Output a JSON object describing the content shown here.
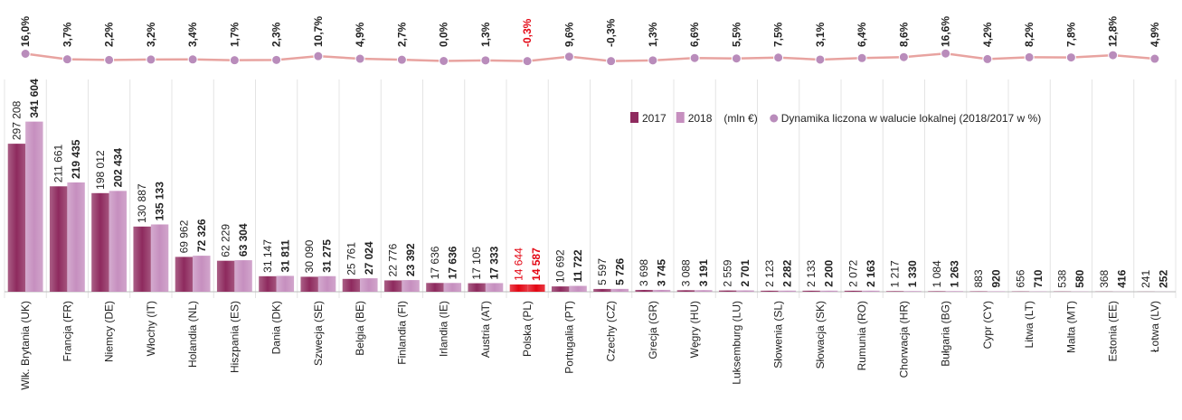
{
  "chart_data": {
    "type": "bar",
    "unit": "(mln €)",
    "categories": [
      "Wlk. Brytania (UK)",
      "Francja (FR)",
      "Niemcy (DE)",
      "Włochy (IT)",
      "Holandia (NL)",
      "Hiszpania (ES)",
      "Dania (DK)",
      "Szwecja (SE)",
      "Belgia (BE)",
      "Finlandia (FI)",
      "Irlandia (IE)",
      "Austria (AT)",
      "Polska (PL)",
      "Portugalia (PT)",
      "Czechy (CZ)",
      "Grecja (GR)",
      "Węgry (HU)",
      "Luksemburg (LU)",
      "Słowenia (SL)",
      "Słowacja (SK)",
      "Rumunia (RO)",
      "Chorwacja (HR)",
      "Bułgaria (BG)",
      "Cypr (CY)",
      "Litwa (LT)",
      "Malta (MT)",
      "Estonia (EE)",
      "Łotwa (LV)"
    ],
    "highlight": {
      "category": "Polska (PL)",
      "color": "#e30613"
    },
    "ylim": [
      0,
      350000
    ],
    "y2lim": [
      -5,
      95
    ],
    "series": [
      {
        "name": "2017",
        "color": "#8e2a5e",
        "values": [
          297208,
          211661,
          198012,
          130887,
          69962,
          62229,
          31147,
          30090,
          25761,
          22776,
          17636,
          17105,
          14644,
          10692,
          5597,
          3698,
          3088,
          2559,
          2123,
          2133,
          2072,
          1217,
          1084,
          883,
          656,
          538,
          368,
          241
        ],
        "value_labels": [
          "297 208",
          "211 661",
          "198 012",
          "130 887",
          "69 962",
          "62 229",
          "31 147",
          "30 090",
          "25 761",
          "22 776",
          "17 636",
          "17 105",
          "14 644",
          "10 692",
          "5 597",
          "3 698",
          "3 088",
          "2 559",
          "2 123",
          "2 133",
          "2 072",
          "1 217",
          "1 084",
          "883",
          "656",
          "538",
          "368",
          "241"
        ]
      },
      {
        "name": "2018",
        "color": "#c68fbf",
        "values": [
          341604,
          219435,
          202434,
          135133,
          72326,
          63304,
          31811,
          31275,
          27024,
          23392,
          17636,
          17333,
          14587,
          11722,
          5726,
          3745,
          3191,
          2701,
          2282,
          2200,
          2163,
          1330,
          1263,
          920,
          710,
          580,
          416,
          252
        ],
        "value_labels": [
          "341 604",
          "219 435",
          "202 434",
          "135 133",
          "72 326",
          "63 304",
          "31 811",
          "31 275",
          "27 024",
          "23 392",
          "17 636",
          "17 333",
          "14 587",
          "11 722",
          "5 726",
          "3 745",
          "3 191",
          "2 701",
          "2 282",
          "2 200",
          "2 163",
          "1 330",
          "1 263",
          "920",
          "710",
          "580",
          "416",
          "252"
        ]
      },
      {
        "name": "Dynamika liczona w walucie lokalnej (2018/2017 w %)",
        "type": "line",
        "axis": "y2",
        "color": "#e8a3a0",
        "marker_color": "#b98cbb",
        "values": [
          16.0,
          3.7,
          2.2,
          3.2,
          3.4,
          1.7,
          2.3,
          10.7,
          4.9,
          2.7,
          0.0,
          1.3,
          -0.3,
          9.6,
          -0.3,
          1.3,
          6.6,
          5.5,
          7.5,
          3.1,
          6.4,
          8.6,
          16.6,
          4.2,
          8.2,
          7.8,
          12.8,
          4.9
        ],
        "value_labels": [
          "16,0%",
          "3,7%",
          "2,2%",
          "3,2%",
          "3,4%",
          "1,7%",
          "2,3%",
          "10,7%",
          "4,9%",
          "2,7%",
          "0,0%",
          "1,3%",
          "-0,3%",
          "9,6%",
          "-0,3%",
          "1,3%",
          "6,6%",
          "5,5%",
          "7,5%",
          "3,1%",
          "6,4%",
          "8,6%",
          "16,6%",
          "4,2%",
          "8,2%",
          "7,8%",
          "12,8%",
          "4,9%"
        ]
      }
    ]
  }
}
